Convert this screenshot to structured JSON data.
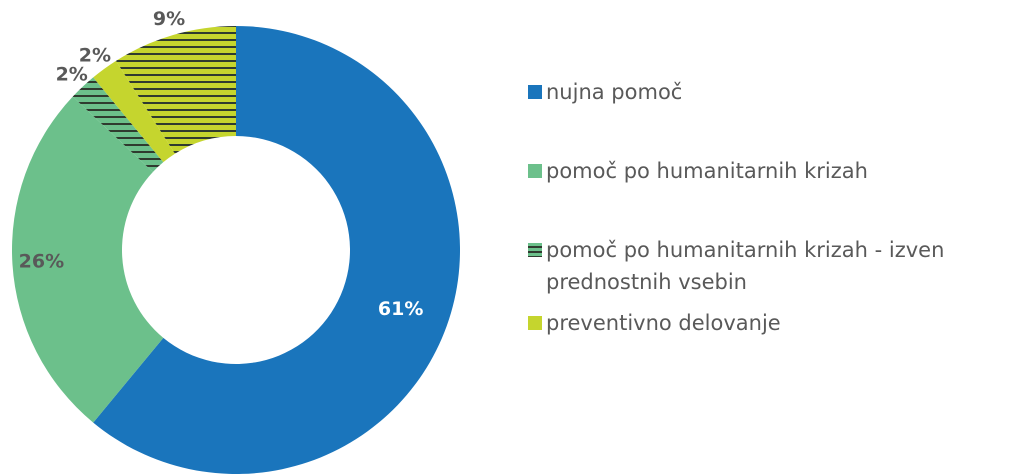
{
  "chart_data": {
    "type": "donut",
    "categories": [
      "nujna pomoč",
      "pomoč po humanitarnih krizah",
      "pomoč po humanitarnih krizah - izven prednostnih vsebin",
      "preventivno delovanje",
      null
    ],
    "values": [
      61,
      26,
      2,
      2,
      9
    ],
    "value_labels": [
      "61%",
      "26%",
      "2%",
      "2%",
      "9%"
    ],
    "colors": [
      "#1a75bc",
      "#6cc08b",
      "#6cc08b",
      "#c5d52e",
      "#c5d52e"
    ],
    "hatched": [
      false,
      false,
      true,
      false,
      true
    ],
    "legend": "right"
  }
}
